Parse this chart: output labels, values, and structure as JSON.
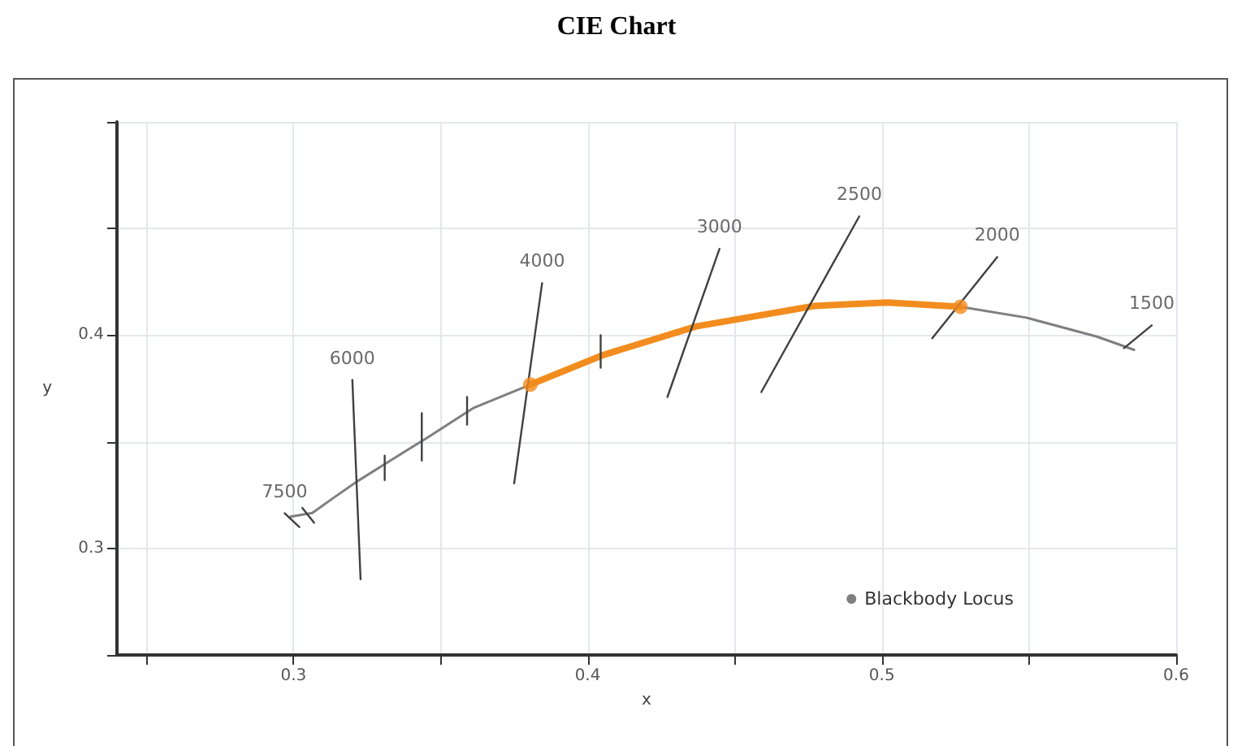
{
  "chart_data": {
    "type": "line",
    "title": "CIE Chart",
    "xlabel": "x",
    "ylabel": "y",
    "xlim": [
      0.24,
      0.6
    ],
    "ylim": [
      0.25,
      0.5
    ],
    "xticks": [
      {
        "value": 0.25,
        "label": null
      },
      0.3,
      {
        "value": 0.35,
        "label": null
      },
      0.4,
      {
        "value": 0.45,
        "label": null
      },
      0.5,
      {
        "value": 0.55,
        "label": null
      },
      0.6
    ],
    "yticks": [
      {
        "value": 0.25,
        "label": null
      },
      0.3,
      {
        "value": 0.35,
        "label": null
      },
      0.4,
      {
        "value": 0.45,
        "label": null
      },
      {
        "value": 0.5,
        "label": null
      }
    ],
    "grid": true,
    "legend": "bottom right",
    "line_style": "solid",
    "series": [
      {
        "name": "Blackbody Locus",
        "color": "#7f7f7f",
        "x": [
          0.299,
          0.3064,
          0.3135,
          0.3221,
          0.3325,
          0.3451,
          0.3611,
          0.3805,
          0.4053,
          0.4369,
          0.477,
          0.5018,
          0.5267,
          0.5491,
          0.5731,
          0.5857
        ],
        "values": [
          0.3149,
          0.3166,
          0.3236,
          0.3318,
          0.3408,
          0.3516,
          0.3658,
          0.3768,
          0.3907,
          0.4041,
          0.4137,
          0.4153,
          0.4133,
          0.4082,
          0.3993,
          0.3931
        ]
      },
      {
        "color": "#f28c1e",
        "x": [
          0.3805,
          0.4053,
          0.4369,
          0.477,
          0.5018,
          0.5267
        ],
        "values": [
          0.3768,
          0.3907,
          0.4041,
          0.4137,
          0.4153,
          0.4133
        ]
      },
      {
        "type": "scatter",
        "marker": "circle",
        "color": "#f28c1e",
        "x": [
          0.3805,
          0.5267
        ],
        "values": [
          0.3768,
          0.4133
        ]
      },
      {
        "color": "#404040",
        "x": [
          0.297,
          0.302
        ],
        "values": [
          0.3165,
          0.31
        ]
      },
      {
        "color": "#404040",
        "x": [
          0.303,
          0.307
        ],
        "values": [
          0.319,
          0.312
        ]
      },
      {
        "color": "#404040",
        "x": [
          0.32,
          0.3228
        ],
        "values": [
          0.379,
          0.2855
        ]
      },
      {
        "color": "#404040",
        "x": [
          0.331,
          0.331
        ],
        "values": [
          0.3435,
          0.332
        ]
      },
      {
        "color": "#404040",
        "x": [
          0.3436,
          0.3436
        ],
        "values": [
          0.3634,
          0.3412
        ]
      },
      {
        "color": "#404040",
        "x": [
          0.359,
          0.359
        ],
        "values": [
          0.371,
          0.358
        ]
      },
      {
        "color": "#404040",
        "x": [
          0.3845,
          0.375
        ],
        "values": [
          0.4244,
          0.3305
        ]
      },
      {
        "color": "#404040",
        "x": [
          0.4044,
          0.4044
        ],
        "values": [
          0.4,
          0.3847
        ]
      },
      {
        "color": "#404040",
        "x": [
          0.4448,
          0.4271
        ],
        "values": [
          0.4405,
          0.371
        ]
      },
      {
        "color": "#404040",
        "x": [
          0.4923,
          0.459
        ],
        "values": [
          0.4557,
          0.3733
        ]
      },
      {
        "color": "#404040",
        "x": [
          0.5392,
          0.5171
        ],
        "values": [
          0.4366,
          0.3985
        ]
      },
      {
        "color": "#404040",
        "x": [
          0.5823,
          0.5917
        ],
        "values": [
          0.3939,
          0.4046
        ]
      }
    ],
    "annotations": [
      {
        "text": "7500",
        "x": 0.297,
        "y": 0.3165
      },
      {
        "text": "6000",
        "x": 0.32,
        "y": 0.379
      },
      {
        "text": "4000",
        "x": 0.3845,
        "y": 0.4244
      },
      {
        "text": "3000",
        "x": 0.4448,
        "y": 0.4405
      },
      {
        "text": "2500",
        "x": 0.4923,
        "y": 0.4557
      },
      {
        "text": "2000",
        "x": 0.5392,
        "y": 0.4366
      },
      {
        "text": "1500",
        "x": 0.5917,
        "y": 0.4046
      }
    ]
  }
}
